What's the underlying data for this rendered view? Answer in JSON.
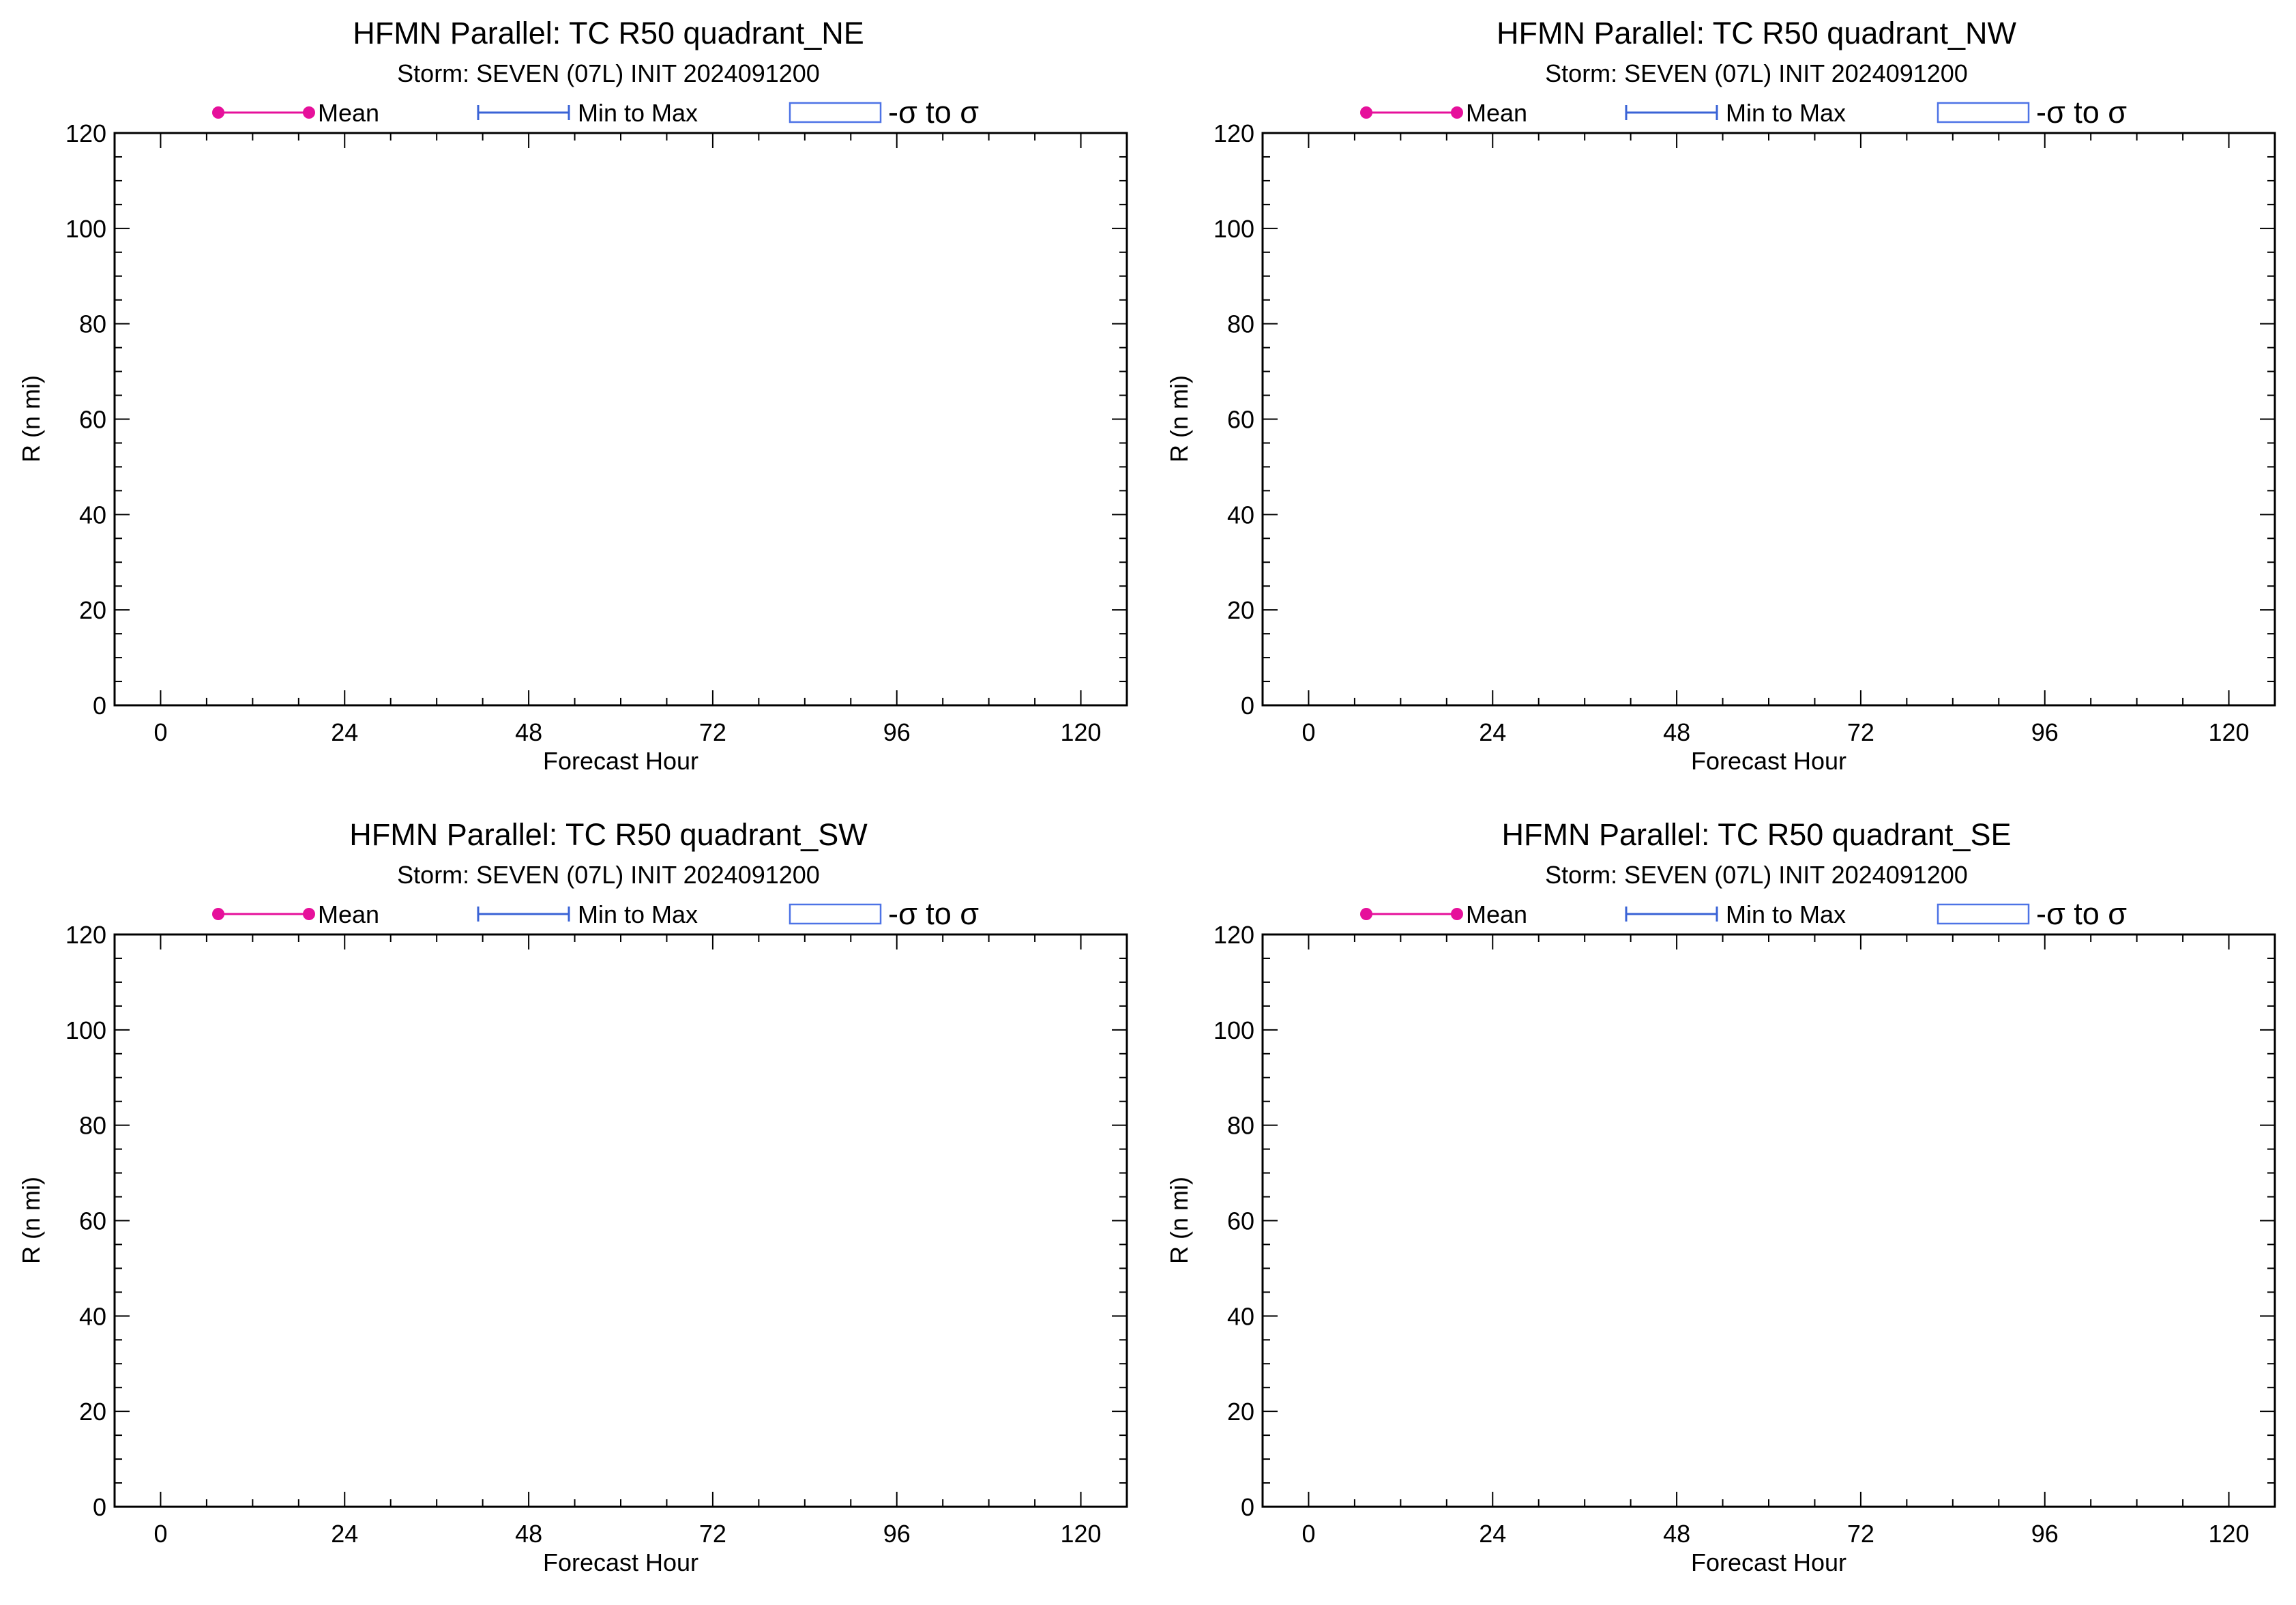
{
  "legend": {
    "mean_label": "Mean",
    "minmax_label": "Min to Max",
    "sigma_label": "-σ to σ",
    "colors": {
      "mean": "#e6109b",
      "minmax": "#3a63d6",
      "sigma": "#4d73e6"
    }
  },
  "chart_data": [
    {
      "type": "line",
      "title": "HFMN Parallel: TC  R50 quadrant_NE",
      "subtitle": "Storm: SEVEN (07L) INIT 2024091200",
      "xlabel": "Forecast Hour",
      "ylabel": "R (n mi)",
      "xlim": [
        -6,
        126
      ],
      "ylim": [
        0,
        120
      ],
      "xticks": [
        "0",
        "24",
        "48",
        "72",
        "96",
        "120"
      ],
      "yticks": [
        "0",
        "20",
        "40",
        "60",
        "80",
        "100",
        "120"
      ],
      "grid": false,
      "legend_position": "top",
      "series": []
    },
    {
      "type": "line",
      "title": "HFMN Parallel: TC  R50 quadrant_NW",
      "subtitle": "Storm: SEVEN (07L) INIT 2024091200",
      "xlabel": "Forecast Hour",
      "ylabel": "R (n mi)",
      "xlim": [
        -6,
        126
      ],
      "ylim": [
        0,
        120
      ],
      "xticks": [
        "0",
        "24",
        "48",
        "72",
        "96",
        "120"
      ],
      "yticks": [
        "0",
        "20",
        "40",
        "60",
        "80",
        "100",
        "120"
      ],
      "grid": false,
      "legend_position": "top",
      "series": []
    },
    {
      "type": "line",
      "title": "HFMN Parallel: TC  R50 quadrant_SW",
      "subtitle": "Storm: SEVEN (07L) INIT 2024091200",
      "xlabel": "Forecast Hour",
      "ylabel": "R (n mi)",
      "xlim": [
        -6,
        126
      ],
      "ylim": [
        0,
        120
      ],
      "xticks": [
        "0",
        "24",
        "48",
        "72",
        "96",
        "120"
      ],
      "yticks": [
        "0",
        "20",
        "40",
        "60",
        "80",
        "100",
        "120"
      ],
      "grid": false,
      "legend_position": "top",
      "series": []
    },
    {
      "type": "line",
      "title": "HFMN Parallel: TC  R50 quadrant_SE",
      "subtitle": "Storm: SEVEN (07L) INIT 2024091200",
      "xlabel": "Forecast Hour",
      "ylabel": "R (n mi)",
      "xlim": [
        -6,
        126
      ],
      "ylim": [
        0,
        120
      ],
      "xticks": [
        "0",
        "24",
        "48",
        "72",
        "96",
        "120"
      ],
      "yticks": [
        "0",
        "20",
        "40",
        "60",
        "80",
        "100",
        "120"
      ],
      "grid": false,
      "legend_position": "top",
      "series": []
    }
  ]
}
